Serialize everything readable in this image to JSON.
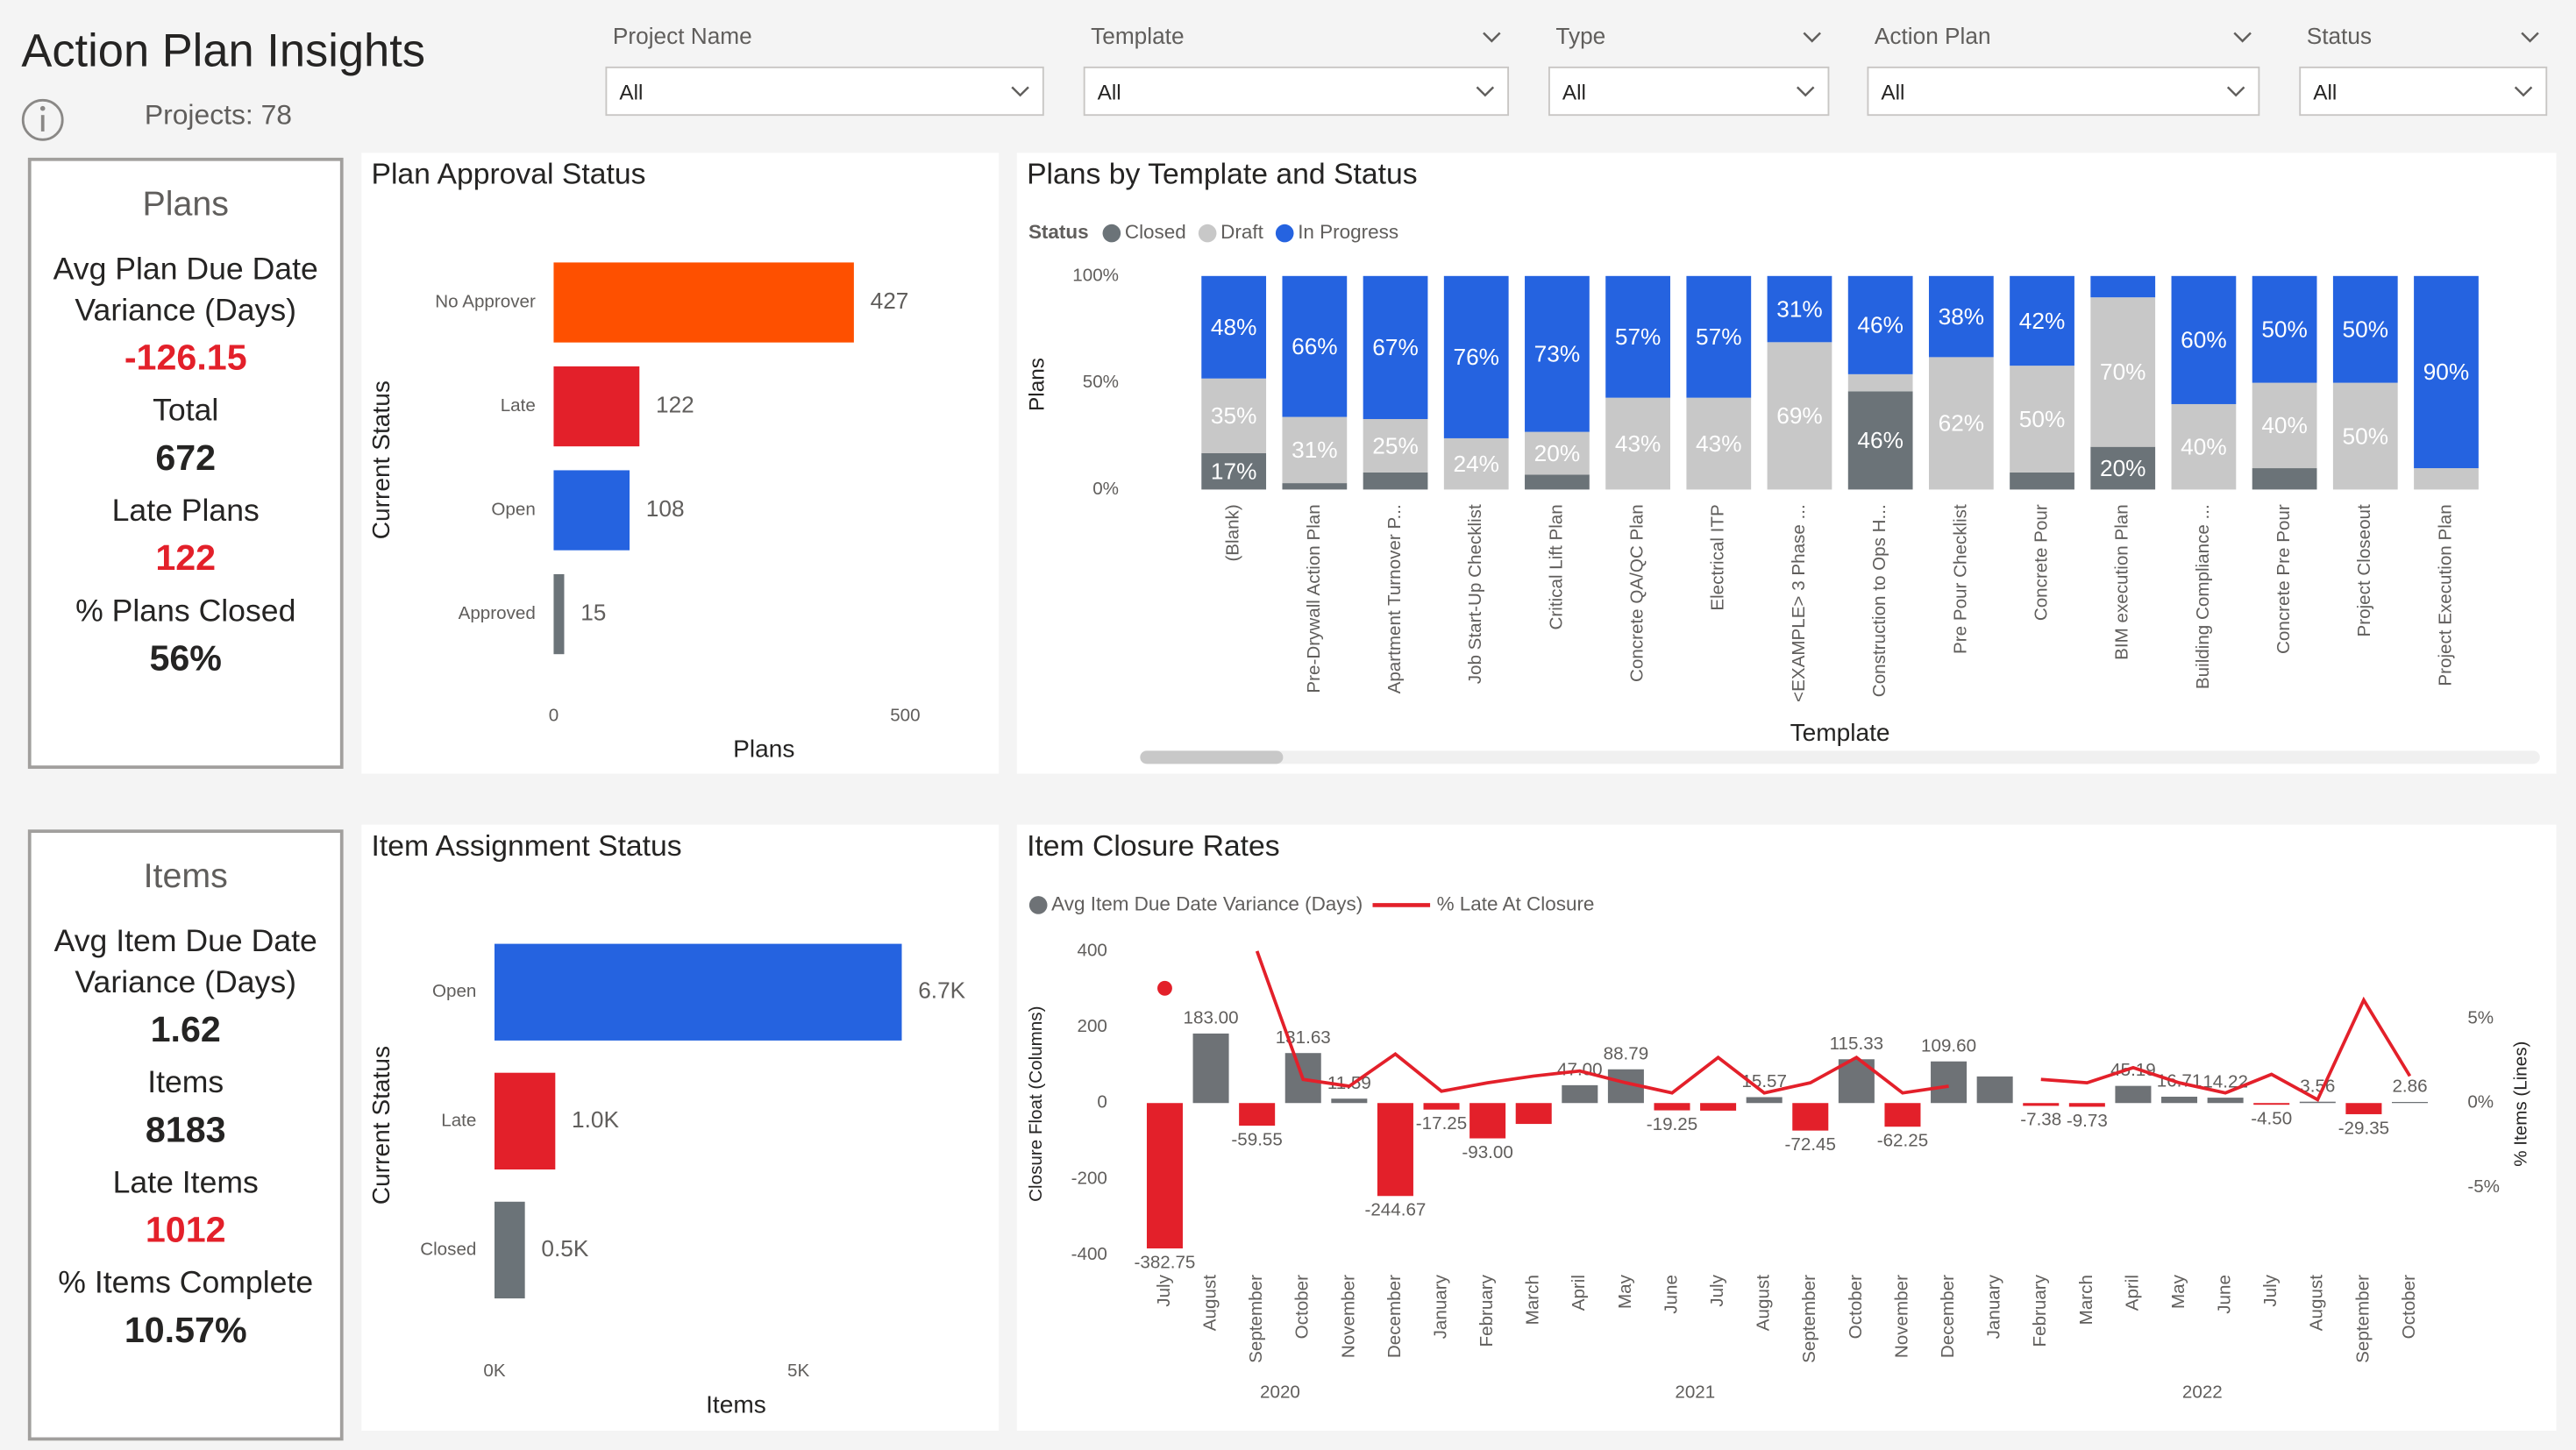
{
  "header": {
    "title": "Action Plan Insights",
    "projects": "Projects: 78"
  },
  "filters": [
    {
      "label": "Project Name",
      "value": "All"
    },
    {
      "label": "Template",
      "value": "All"
    },
    {
      "label": "Type",
      "value": "All"
    },
    {
      "label": "Action Plan",
      "value": "All"
    },
    {
      "label": "Status",
      "value": "All"
    }
  ],
  "cards": [
    {
      "title": "Plans",
      "metrics": [
        {
          "label": "Avg Plan Due Date Variance (Days)",
          "value": "-126.15",
          "color": "#e3202a"
        },
        {
          "label": "Total",
          "value": "672",
          "color": "#252423"
        },
        {
          "label": "Late Plans",
          "value": "122",
          "color": "#e3202a"
        },
        {
          "label": "% Plans Closed",
          "value": "56%",
          "color": "#252423"
        }
      ]
    },
    {
      "title": "Items",
      "metrics": [
        {
          "label": "Avg Item Due Date Variance (Days)",
          "value": "1.62",
          "color": "#252423"
        },
        {
          "label": "Items",
          "value": "8183",
          "color": "#252423"
        },
        {
          "label": "Late Items",
          "value": "1012",
          "color": "#e3202a"
        },
        {
          "label": "% Items Complete",
          "value": "10.57%",
          "color": "#252423"
        }
      ]
    }
  ],
  "chart_data": [
    {
      "type": "barh",
      "title": "Plan Approval Status",
      "xlabel": "Plans",
      "ylabel": "Current Status",
      "categories": [
        "No Approver",
        "Late",
        "Open",
        "Approved"
      ],
      "values": [
        427,
        122,
        108,
        15
      ],
      "colors": [
        "#fe5000",
        "#e3202a",
        "#2563e0",
        "#6b7378"
      ],
      "xlim": [
        0,
        500
      ],
      "xticks": [
        0,
        500
      ]
    },
    {
      "type": "stacked",
      "title": "Plans by Template and Status",
      "legend_title": "Status",
      "xlabel": "Template",
      "ylabel": "Plans",
      "categories": [
        "(Blank)",
        "Pre-Drywall Action Plan",
        "Apartment Turnover P...",
        "Job Start-Up Checklist",
        "Critical Lift Plan",
        "Concrete QA/QC Plan",
        "Electrical ITP",
        "<EXAMPLE> 3 Phase ...",
        "Construction to Ops H...",
        "Pre Pour Checklist",
        "Concrete Pour",
        "BIM execution Plan",
        "Building Compliance ...",
        "Concrete Pre Pour",
        "Project Closeout",
        "Project Execution Plan"
      ],
      "series": [
        {
          "name": "Closed",
          "color": "#6b7378",
          "values": [
            17,
            3,
            8,
            0,
            7,
            0,
            0,
            0,
            46,
            0,
            8,
            20,
            0,
            10,
            0,
            0
          ],
          "value_labels": [
            "17%",
            null,
            null,
            null,
            null,
            null,
            null,
            null,
            "46%",
            null,
            null,
            "20%",
            null,
            null,
            null,
            null
          ]
        },
        {
          "name": "Draft",
          "color": "#c8c8c8",
          "values": [
            35,
            31,
            25,
            24,
            20,
            43,
            43,
            69,
            8,
            62,
            50,
            70,
            40,
            40,
            50,
            10
          ],
          "value_labels": [
            "35%",
            "31%",
            "25%",
            "24%",
            "20%",
            "43%",
            "43%",
            "69%",
            null,
            "62%",
            "50%",
            "70%",
            "40%",
            "40%",
            "50%",
            null
          ]
        },
        {
          "name": "In Progress",
          "color": "#2563e0",
          "values": [
            48,
            66,
            67,
            76,
            73,
            57,
            57,
            31,
            46,
            38,
            42,
            10,
            60,
            50,
            50,
            90
          ],
          "value_labels": [
            "48%",
            "66%",
            "67%",
            "76%",
            "73%",
            "57%",
            "57%",
            "31%",
            "46%",
            "38%",
            "42%",
            null,
            "60%",
            "50%",
            "50%",
            "90%"
          ]
        }
      ],
      "ylim": [
        0,
        100
      ],
      "yticks": [
        {
          "value": 0,
          "label": "0%"
        },
        {
          "value": 50,
          "label": "50%"
        },
        {
          "value": 100,
          "label": "100%"
        }
      ]
    },
    {
      "type": "barh",
      "title": "Item Assignment Status",
      "xlabel": "Items",
      "ylabel": "Current Status",
      "categories": [
        "Open",
        "Late",
        "Closed"
      ],
      "values": [
        6700,
        1000,
        500
      ],
      "value_labels": [
        "6.7K",
        "1.0K",
        "0.5K"
      ],
      "colors": [
        "#2563e0",
        "#e3202a",
        "#6b7378"
      ],
      "xlim": [
        0,
        7000
      ],
      "xticks": [
        {
          "value": 0,
          "label": "0K"
        },
        {
          "value": 5000,
          "label": "5K"
        }
      ]
    },
    {
      "type": "combo",
      "title": "Item Closure Rates",
      "ylabel": "Closure Float (Columns)",
      "y2label": "% Items (Lines)",
      "categories": [
        "July",
        "August",
        "September",
        "October",
        "November",
        "December",
        "January",
        "February",
        "March",
        "April",
        "May",
        "June",
        "July",
        "August",
        "September",
        "October",
        "November",
        "December",
        "January",
        "February",
        "March",
        "April",
        "May",
        "June",
        "July",
        "August",
        "September",
        "October"
      ],
      "category_years": [
        "2020",
        "2020",
        "2020",
        "2020",
        "2020",
        "2020",
        "2021",
        "2021",
        "2021",
        "2021",
        "2021",
        "2021",
        "2021",
        "2021",
        "2021",
        "2021",
        "2021",
        "2021",
        "2022",
        "2022",
        "2022",
        "2022",
        "2022",
        "2022",
        "2022",
        "2022",
        "2022",
        "2022"
      ],
      "series": [
        {
          "name": "Avg Item Due Date Variance (Days)",
          "type": "bar",
          "color": "#6e7276",
          "negative_color": "#e3202a",
          "values": [
            -382.75,
            183,
            -59.55,
            131.63,
            11.59,
            -244.67,
            -17.25,
            -93,
            -55,
            47,
            88.79,
            -19.25,
            -20,
            15.57,
            -72.45,
            115.33,
            -62.25,
            109.6,
            70,
            -7.38,
            -9.73,
            45.19,
            16.71,
            14.22,
            -4.5,
            3.56,
            -29.35,
            2.86
          ],
          "value_labels": [
            "-382.75",
            "183.00",
            "-59.55",
            "131.63",
            "11.59",
            "-244.67",
            "-17.25",
            "-93.00",
            null,
            "47.00",
            "88.79",
            "-19.25",
            null,
            "15.57",
            "-72.45",
            "115.33",
            "-62.25",
            "109.60",
            null,
            "-7.38",
            "-9.73",
            "45.19",
            "16.71",
            "14.22",
            "-4.50",
            "3.56",
            "-29.35",
            "2.86"
          ]
        },
        {
          "name": "% Late At Closure",
          "type": "line",
          "axis": "y2",
          "color": "#e3202a",
          "values": [
            6.8,
            null,
            9.0,
            1.4,
            1.0,
            2.9,
            0.7,
            1.2,
            1.6,
            1.9,
            1.2,
            0.6,
            2.7,
            0.6,
            1.2,
            2.7,
            0.6,
            1.0,
            null,
            1.4,
            1.2,
            2.1,
            1.2,
            0.6,
            1.7,
            0.2,
            6.1,
            1.6
          ]
        }
      ],
      "ylim": [
        -400,
        400
      ],
      "yticks": [
        400,
        200,
        0,
        -200,
        -400
      ],
      "y2lim": [
        -9,
        9
      ],
      "y2ticks": [
        {
          "value": 5,
          "label": "5%"
        },
        {
          "value": 0,
          "label": "0%"
        },
        {
          "value": -5,
          "label": "-5%"
        }
      ]
    }
  ]
}
